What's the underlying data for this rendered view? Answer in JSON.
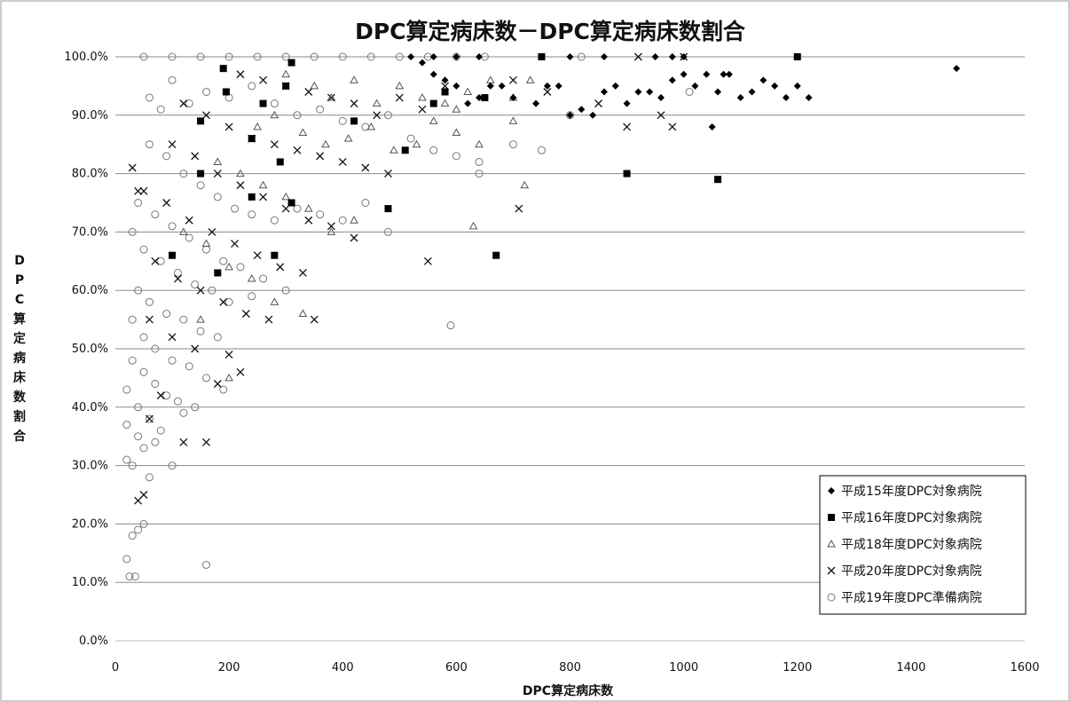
{
  "chart_data": {
    "type": "scatter",
    "title": "DPC算定病床数－DPC算定病床数割合",
    "xlabel": "DPC算定病床数",
    "ylabel": "DPC算定病床数割合",
    "xlim": [
      0,
      1600
    ],
    "ylim": [
      0.0,
      1.0
    ],
    "x_ticks": [
      "0",
      "200",
      "400",
      "600",
      "800",
      "1000",
      "1200",
      "1400",
      "1600"
    ],
    "y_ticks": [
      "0.0%",
      "10.0%",
      "20.0%",
      "30.0%",
      "40.0%",
      "50.0%",
      "60.0%",
      "70.0%",
      "80.0%",
      "90.0%",
      "100.0%"
    ],
    "grid": "horizontal",
    "legend_position": "bottom-right",
    "series": [
      {
        "name": "平成15年度DPC対象病院",
        "marker": "diamond",
        "color": "#000000",
        "points": [
          [
            520,
            1.0
          ],
          [
            560,
            1.0
          ],
          [
            600,
            1.0
          ],
          [
            640,
            1.0
          ],
          [
            800,
            1.0
          ],
          [
            860,
            1.0
          ],
          [
            950,
            1.0
          ],
          [
            980,
            1.0
          ],
          [
            1000,
            1.0
          ],
          [
            1200,
            1.0
          ],
          [
            540,
            0.99
          ],
          [
            560,
            0.97
          ],
          [
            580,
            0.96
          ],
          [
            600,
            0.95
          ],
          [
            620,
            0.92
          ],
          [
            640,
            0.93
          ],
          [
            660,
            0.95
          ],
          [
            680,
            0.95
          ],
          [
            700,
            0.93
          ],
          [
            740,
            0.92
          ],
          [
            760,
            0.95
          ],
          [
            780,
            0.95
          ],
          [
            800,
            0.9
          ],
          [
            820,
            0.91
          ],
          [
            840,
            0.9
          ],
          [
            860,
            0.94
          ],
          [
            880,
            0.95
          ],
          [
            900,
            0.92
          ],
          [
            920,
            0.94
          ],
          [
            940,
            0.94
          ],
          [
            960,
            0.93
          ],
          [
            980,
            0.96
          ],
          [
            1000,
            0.97
          ],
          [
            1020,
            0.95
          ],
          [
            1040,
            0.97
          ],
          [
            1050,
            0.88
          ],
          [
            1060,
            0.94
          ],
          [
            1070,
            0.97
          ],
          [
            1080,
            0.97
          ],
          [
            1100,
            0.93
          ],
          [
            1120,
            0.94
          ],
          [
            1140,
            0.96
          ],
          [
            1160,
            0.95
          ],
          [
            1180,
            0.93
          ],
          [
            1200,
            0.95
          ],
          [
            1220,
            0.93
          ],
          [
            1480,
            0.98
          ]
        ]
      },
      {
        "name": "平成16年度DPC対象病院",
        "marker": "square",
        "color": "#000000",
        "points": [
          [
            190,
            0.98
          ],
          [
            310,
            0.99
          ],
          [
            750,
            1.0
          ],
          [
            1200,
            1.0
          ],
          [
            150,
            0.89
          ],
          [
            195,
            0.94
          ],
          [
            240,
            0.86
          ],
          [
            260,
            0.92
          ],
          [
            290,
            0.82
          ],
          [
            300,
            0.95
          ],
          [
            150,
            0.8
          ],
          [
            310,
            0.75
          ],
          [
            420,
            0.89
          ],
          [
            480,
            0.74
          ],
          [
            510,
            0.84
          ],
          [
            560,
            0.92
          ],
          [
            580,
            0.94
          ],
          [
            650,
            0.93
          ],
          [
            100,
            0.66
          ],
          [
            180,
            0.63
          ],
          [
            280,
            0.66
          ],
          [
            670,
            0.66
          ],
          [
            900,
            0.8
          ],
          [
            1060,
            0.79
          ],
          [
            240,
            0.76
          ]
        ]
      },
      {
        "name": "平成18年度DPC対象病院",
        "marker": "triangle",
        "color": "#555555",
        "points": [
          [
            300,
            0.97
          ],
          [
            350,
            0.95
          ],
          [
            380,
            0.93
          ],
          [
            420,
            0.96
          ],
          [
            460,
            0.92
          ],
          [
            500,
            0.95
          ],
          [
            540,
            0.93
          ],
          [
            580,
            0.92
          ],
          [
            620,
            0.94
          ],
          [
            660,
            0.96
          ],
          [
            700,
            0.93
          ],
          [
            730,
            0.96
          ],
          [
            250,
            0.88
          ],
          [
            280,
            0.9
          ],
          [
            330,
            0.87
          ],
          [
            370,
            0.85
          ],
          [
            410,
            0.86
          ],
          [
            450,
            0.88
          ],
          [
            490,
            0.84
          ],
          [
            530,
            0.85
          ],
          [
            560,
            0.89
          ],
          [
            600,
            0.87
          ],
          [
            640,
            0.85
          ],
          [
            180,
            0.82
          ],
          [
            220,
            0.8
          ],
          [
            260,
            0.78
          ],
          [
            300,
            0.76
          ],
          [
            340,
            0.74
          ],
          [
            380,
            0.7
          ],
          [
            420,
            0.72
          ],
          [
            120,
            0.7
          ],
          [
            160,
            0.68
          ],
          [
            200,
            0.64
          ],
          [
            240,
            0.62
          ],
          [
            280,
            0.58
          ],
          [
            330,
            0.56
          ],
          [
            150,
            0.55
          ],
          [
            200,
            0.45
          ],
          [
            600,
            0.91
          ],
          [
            630,
            0.71
          ],
          [
            700,
            0.89
          ],
          [
            720,
            0.78
          ]
        ]
      },
      {
        "name": "平成20年度DPC対象病院",
        "marker": "x",
        "color": "#111111",
        "points": [
          [
            920,
            1.0
          ],
          [
            1000,
            1.0
          ],
          [
            700,
            0.96
          ],
          [
            760,
            0.94
          ],
          [
            850,
            0.92
          ],
          [
            980,
            0.88
          ],
          [
            960,
            0.9
          ],
          [
            900,
            0.88
          ],
          [
            220,
            0.97
          ],
          [
            260,
            0.96
          ],
          [
            300,
            0.95
          ],
          [
            340,
            0.94
          ],
          [
            380,
            0.93
          ],
          [
            420,
            0.92
          ],
          [
            460,
            0.9
          ],
          [
            500,
            0.93
          ],
          [
            540,
            0.91
          ],
          [
            580,
            0.95
          ],
          [
            120,
            0.92
          ],
          [
            160,
            0.9
          ],
          [
            200,
            0.88
          ],
          [
            240,
            0.86
          ],
          [
            280,
            0.85
          ],
          [
            320,
            0.84
          ],
          [
            360,
            0.83
          ],
          [
            400,
            0.82
          ],
          [
            440,
            0.81
          ],
          [
            480,
            0.8
          ],
          [
            100,
            0.85
          ],
          [
            140,
            0.83
          ],
          [
            180,
            0.8
          ],
          [
            220,
            0.78
          ],
          [
            260,
            0.76
          ],
          [
            300,
            0.74
          ],
          [
            340,
            0.72
          ],
          [
            380,
            0.71
          ],
          [
            420,
            0.69
          ],
          [
            90,
            0.75
          ],
          [
            130,
            0.72
          ],
          [
            170,
            0.7
          ],
          [
            210,
            0.68
          ],
          [
            250,
            0.66
          ],
          [
            290,
            0.64
          ],
          [
            330,
            0.63
          ],
          [
            70,
            0.65
          ],
          [
            110,
            0.62
          ],
          [
            150,
            0.6
          ],
          [
            190,
            0.58
          ],
          [
            230,
            0.56
          ],
          [
            270,
            0.55
          ],
          [
            60,
            0.55
          ],
          [
            100,
            0.52
          ],
          [
            140,
            0.5
          ],
          [
            180,
            0.44
          ],
          [
            200,
            0.49
          ],
          [
            220,
            0.46
          ],
          [
            80,
            0.42
          ],
          [
            120,
            0.34
          ],
          [
            160,
            0.34
          ],
          [
            60,
            0.38
          ],
          [
            40,
            0.24
          ],
          [
            50,
            0.25
          ],
          [
            350,
            0.55
          ],
          [
            550,
            0.65
          ],
          [
            710,
            0.74
          ],
          [
            40,
            0.77
          ],
          [
            50,
            0.77
          ],
          [
            30,
            0.81
          ]
        ]
      },
      {
        "name": "平成19年度DPC準備病院",
        "marker": "circle",
        "color": "#777777",
        "points": [
          [
            50,
            1.0
          ],
          [
            100,
            1.0
          ],
          [
            150,
            1.0
          ],
          [
            200,
            1.0
          ],
          [
            250,
            1.0
          ],
          [
            300,
            1.0
          ],
          [
            350,
            1.0
          ],
          [
            400,
            1.0
          ],
          [
            450,
            1.0
          ],
          [
            500,
            1.0
          ],
          [
            550,
            1.0
          ],
          [
            600,
            1.0
          ],
          [
            650,
            1.0
          ],
          [
            820,
            1.0
          ],
          [
            60,
            0.93
          ],
          [
            80,
            0.91
          ],
          [
            100,
            0.96
          ],
          [
            130,
            0.92
          ],
          [
            160,
            0.94
          ],
          [
            200,
            0.93
          ],
          [
            240,
            0.95
          ],
          [
            280,
            0.92
          ],
          [
            320,
            0.9
          ],
          [
            360,
            0.91
          ],
          [
            400,
            0.89
          ],
          [
            440,
            0.88
          ],
          [
            480,
            0.9
          ],
          [
            520,
            0.86
          ],
          [
            560,
            0.84
          ],
          [
            600,
            0.83
          ],
          [
            640,
            0.82
          ],
          [
            60,
            0.85
          ],
          [
            90,
            0.83
          ],
          [
            120,
            0.8
          ],
          [
            150,
            0.78
          ],
          [
            180,
            0.76
          ],
          [
            210,
            0.74
          ],
          [
            240,
            0.73
          ],
          [
            280,
            0.72
          ],
          [
            320,
            0.74
          ],
          [
            360,
            0.73
          ],
          [
            400,
            0.72
          ],
          [
            440,
            0.75
          ],
          [
            480,
            0.7
          ],
          [
            40,
            0.75
          ],
          [
            70,
            0.73
          ],
          [
            100,
            0.71
          ],
          [
            130,
            0.69
          ],
          [
            160,
            0.67
          ],
          [
            190,
            0.65
          ],
          [
            220,
            0.64
          ],
          [
            260,
            0.62
          ],
          [
            300,
            0.6
          ],
          [
            30,
            0.7
          ],
          [
            50,
            0.67
          ],
          [
            80,
            0.65
          ],
          [
            110,
            0.63
          ],
          [
            140,
            0.61
          ],
          [
            170,
            0.6
          ],
          [
            200,
            0.58
          ],
          [
            240,
            0.59
          ],
          [
            40,
            0.6
          ],
          [
            60,
            0.58
          ],
          [
            90,
            0.56
          ],
          [
            120,
            0.55
          ],
          [
            150,
            0.53
          ],
          [
            180,
            0.52
          ],
          [
            30,
            0.55
          ],
          [
            50,
            0.52
          ],
          [
            70,
            0.5
          ],
          [
            100,
            0.48
          ],
          [
            130,
            0.47
          ],
          [
            160,
            0.45
          ],
          [
            190,
            0.43
          ],
          [
            30,
            0.48
          ],
          [
            50,
            0.46
          ],
          [
            70,
            0.44
          ],
          [
            90,
            0.42
          ],
          [
            110,
            0.41
          ],
          [
            140,
            0.4
          ],
          [
            20,
            0.43
          ],
          [
            40,
            0.4
          ],
          [
            60,
            0.38
          ],
          [
            80,
            0.36
          ],
          [
            100,
            0.3
          ],
          [
            120,
            0.39
          ],
          [
            20,
            0.37
          ],
          [
            40,
            0.35
          ],
          [
            50,
            0.33
          ],
          [
            70,
            0.34
          ],
          [
            30,
            0.3
          ],
          [
            20,
            0.31
          ],
          [
            60,
            0.28
          ],
          [
            50,
            0.2
          ],
          [
            40,
            0.19
          ],
          [
            30,
            0.18
          ],
          [
            20,
            0.14
          ],
          [
            25,
            0.11
          ],
          [
            35,
            0.11
          ],
          [
            160,
            0.13
          ],
          [
            590,
            0.54
          ],
          [
            640,
            0.8
          ],
          [
            700,
            0.85
          ],
          [
            750,
            0.84
          ],
          [
            800,
            0.9
          ],
          [
            1010,
            0.94
          ]
        ]
      }
    ]
  }
}
